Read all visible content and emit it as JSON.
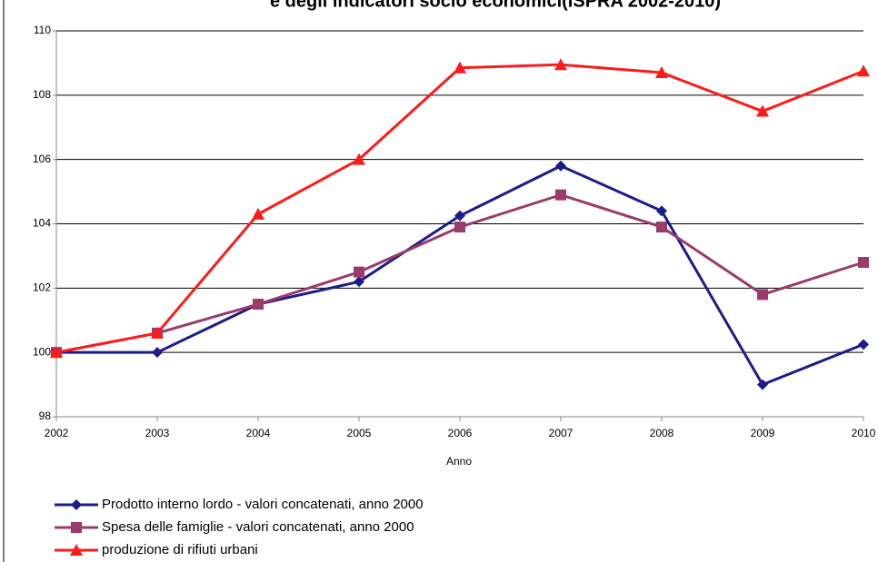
{
  "chart_data": {
    "type": "line",
    "title": "e degli indicatori socio economici(ISPRA 2002-2010)",
    "x_label": "Anno",
    "x": [
      2002,
      2003,
      2004,
      2005,
      2006,
      2007,
      2008,
      2009,
      2010
    ],
    "xlim": [
      2002,
      2010
    ],
    "xticks": [
      2002,
      2003,
      2004,
      2005,
      2006,
      2007,
      2008,
      2009,
      2010
    ],
    "ylim": [
      98,
      110
    ],
    "yticks": [
      98,
      100,
      102,
      104,
      106,
      108,
      110
    ],
    "grid": true,
    "legend": "bottom",
    "series": [
      {
        "name": "Prodotto interno lordo - valori concatenati, anno 2000",
        "color": "#1c1c8a",
        "marker": "diamond",
        "values": [
          100,
          100,
          101.5,
          102.2,
          104.25,
          105.8,
          104.4,
          99,
          100.25
        ]
      },
      {
        "name": "Spesa delle famiglie - valori concatenati, anno 2000",
        "color": "#9a3b6c",
        "marker": "square",
        "values": [
          100,
          100.6,
          101.5,
          102.5,
          103.9,
          104.9,
          103.9,
          101.8,
          102.8
        ]
      },
      {
        "name": "produzione di rifiuti urbani",
        "color": "#ff1a1a",
        "marker": "triangle",
        "values": [
          100,
          100.6,
          104.3,
          106,
          108.85,
          108.95,
          108.7,
          107.5,
          108.75
        ]
      }
    ]
  }
}
